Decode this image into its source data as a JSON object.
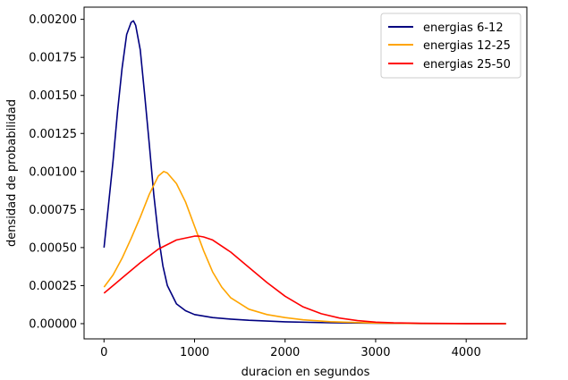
{
  "chart_data": {
    "type": "line",
    "xlabel": "duracion en segundos",
    "ylabel": "densidad de probabilidad",
    "xlim": [
      -220,
      4670
    ],
    "ylim": [
      -0.0001,
      0.00208
    ],
    "xticks": [
      0,
      1000,
      2000,
      3000,
      4000
    ],
    "xtick_labels": [
      "0",
      "1000",
      "2000",
      "3000",
      "4000"
    ],
    "yticks": [
      0,
      0.00025,
      0.0005,
      0.00075,
      0.001,
      0.00125,
      0.0015,
      0.00175,
      0.002
    ],
    "ytick_labels": [
      "0.00000",
      "0.00025",
      "0.00050",
      "0.00075",
      "0.00100",
      "0.00125",
      "0.00150",
      "0.00175",
      "0.00200"
    ],
    "grid": false,
    "legend_position": "top-right",
    "series": [
      {
        "name": "energias 6-12",
        "color": "#000080",
        "x": [
          0,
          50,
          100,
          150,
          200,
          250,
          300,
          325,
          350,
          400,
          450,
          500,
          550,
          600,
          650,
          700,
          800,
          900,
          1000,
          1200,
          1400,
          1600,
          2000,
          2500,
          3000,
          3500,
          4000,
          4440
        ],
        "y": [
          0.0005,
          0.00078,
          0.00107,
          0.0014,
          0.00168,
          0.0019,
          0.00198,
          0.00199,
          0.00196,
          0.0018,
          0.0015,
          0.00118,
          0.00085,
          0.00058,
          0.00038,
          0.00025,
          0.00013,
          8.5e-05,
          6e-05,
          4e-05,
          3e-05,
          2.2e-05,
          1.2e-05,
          6e-06,
          3e-06,
          1e-06,
          5e-07,
          0
        ]
      },
      {
        "name": "energias 12-25",
        "color": "#FFA500",
        "x": [
          0,
          100,
          200,
          300,
          400,
          500,
          600,
          660,
          700,
          800,
          900,
          1000,
          1100,
          1200,
          1300,
          1400,
          1600,
          1800,
          2000,
          2200,
          2500,
          3000,
          3500,
          4000,
          4440
        ],
        "y": [
          0.00024,
          0.00032,
          0.00043,
          0.00056,
          0.0007,
          0.00085,
          0.00097,
          0.001,
          0.00099,
          0.00092,
          0.0008,
          0.00064,
          0.00048,
          0.00034,
          0.00024,
          0.00017,
          9.5e-05,
          6e-05,
          4e-05,
          2.5e-05,
          1.3e-05,
          4e-06,
          1e-06,
          0,
          0
        ]
      },
      {
        "name": "energias 25-50",
        "color": "#FF0000",
        "x": [
          0,
          200,
          400,
          600,
          800,
          1000,
          1050,
          1100,
          1200,
          1400,
          1600,
          1800,
          2000,
          2200,
          2400,
          2600,
          2800,
          3000,
          3200,
          3500,
          4000,
          4440
        ],
        "y": [
          0.0002,
          0.0003,
          0.0004,
          0.00049,
          0.00055,
          0.000575,
          0.000575,
          0.00057,
          0.00055,
          0.00047,
          0.00037,
          0.00027,
          0.00018,
          0.00011,
          6.5e-05,
          3.7e-05,
          2e-05,
          1e-05,
          5e-06,
          2e-06,
          5e-07,
          0
        ]
      }
    ]
  }
}
